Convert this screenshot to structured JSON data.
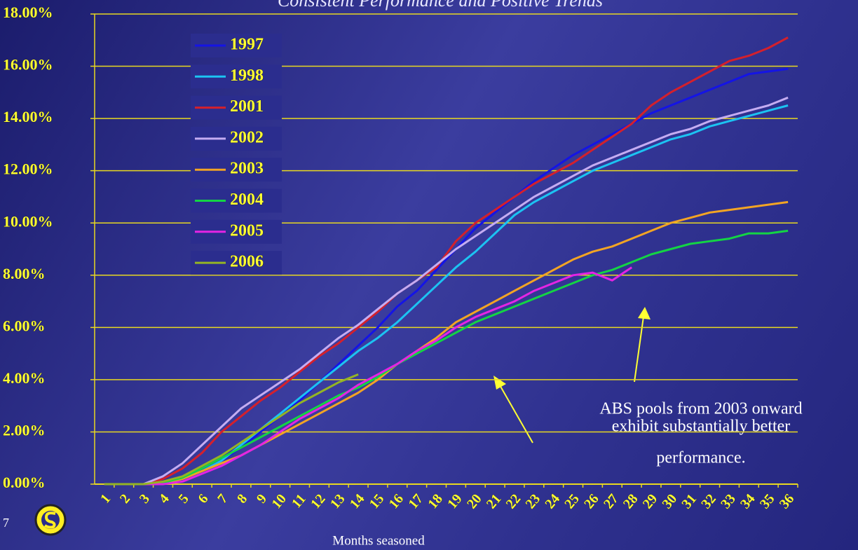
{
  "chart_data": {
    "type": "line",
    "title": "Consistent Performance and Positive Trends",
    "x_label": "Months seasoned",
    "page_number": "7",
    "annotation": [
      "ABS pools from 2003 onward",
      "exhibit substantially better",
      "performance."
    ],
    "categories": [
      "1",
      "2",
      "3",
      "4",
      "5",
      "6",
      "7",
      "8",
      "9",
      "10",
      "11",
      "12",
      "13",
      "14",
      "15",
      "16",
      "17",
      "18",
      "19",
      "20",
      "21",
      "22",
      "23",
      "24",
      "25",
      "26",
      "27",
      "28",
      "29",
      "30",
      "31",
      "32",
      "33",
      "34",
      "35",
      "36"
    ],
    "ylim": [
      0,
      18
    ],
    "yticks": [
      {
        "value": 0,
        "label": "0.00%"
      },
      {
        "value": 2,
        "label": "2.00%"
      },
      {
        "value": 4,
        "label": "4.00%"
      },
      {
        "value": 6,
        "label": "6.00%"
      },
      {
        "value": 8,
        "label": "8.00%"
      },
      {
        "value": 10,
        "label": "10.00%"
      },
      {
        "value": 12,
        "label": "12.00%"
      },
      {
        "value": 14,
        "label": "14.00%"
      },
      {
        "value": 16,
        "label": "16.00%"
      },
      {
        "value": 18,
        "label": "18.00%"
      }
    ],
    "grid": true,
    "series": [
      {
        "name": "1997",
        "color": "#1414e6",
        "values": [
          0,
          0,
          0,
          0.1,
          0.3,
          0.6,
          0.9,
          1.4,
          2.0,
          2.6,
          3.2,
          3.9,
          4.6,
          5.3,
          6.0,
          6.8,
          7.4,
          8.2,
          9.0,
          9.8,
          10.4,
          11.0,
          11.6,
          12.1,
          12.6,
          13.0,
          13.4,
          13.8,
          14.2,
          14.5,
          14.8,
          15.1,
          15.4,
          15.7,
          15.8,
          15.9
        ]
      },
      {
        "name": "1998",
        "color": "#1cc3f2",
        "values": [
          0,
          0,
          0,
          0.05,
          0.2,
          0.5,
          0.9,
          1.5,
          2.1,
          2.7,
          3.3,
          3.9,
          4.5,
          5.1,
          5.6,
          6.2,
          6.9,
          7.6,
          8.3,
          8.9,
          9.6,
          10.3,
          10.8,
          11.2,
          11.6,
          12.0,
          12.3,
          12.6,
          12.9,
          13.2,
          13.4,
          13.7,
          13.9,
          14.1,
          14.3,
          14.5
        ]
      },
      {
        "name": "2001",
        "color": "#d4202c",
        "values": [
          0,
          0,
          0,
          0.2,
          0.6,
          1.2,
          2.0,
          2.6,
          3.2,
          3.7,
          4.3,
          4.9,
          5.4,
          6.0,
          6.6,
          7.3,
          7.8,
          8.3,
          9.3,
          10.0,
          10.5,
          11.0,
          11.5,
          11.9,
          12.3,
          12.8,
          13.3,
          13.8,
          14.5,
          15.0,
          15.4,
          15.8,
          16.2,
          16.4,
          16.7,
          17.1
        ]
      },
      {
        "name": "2002",
        "color": "#c4acf2",
        "values": [
          0,
          0,
          0,
          0.3,
          0.8,
          1.5,
          2.2,
          2.9,
          3.4,
          3.9,
          4.4,
          5.0,
          5.6,
          6.1,
          6.7,
          7.3,
          7.8,
          8.4,
          9.0,
          9.5,
          10.0,
          10.5,
          11.0,
          11.4,
          11.8,
          12.2,
          12.5,
          12.8,
          13.1,
          13.4,
          13.6,
          13.9,
          14.1,
          14.3,
          14.5,
          14.8
        ]
      },
      {
        "name": "2003",
        "color": "#f2a424",
        "values": [
          0,
          0,
          0,
          0.05,
          0.2,
          0.5,
          0.8,
          1.1,
          1.5,
          1.9,
          2.3,
          2.7,
          3.1,
          3.5,
          4.0,
          4.6,
          5.1,
          5.6,
          6.2,
          6.6,
          7.0,
          7.4,
          7.8,
          8.2,
          8.6,
          8.9,
          9.1,
          9.4,
          9.7,
          10.0,
          10.2,
          10.4,
          10.5,
          10.6,
          10.7,
          10.8
        ]
      },
      {
        "name": "2004",
        "color": "#14d444",
        "values": [
          0,
          0,
          0,
          0.05,
          0.25,
          0.6,
          1.0,
          1.4,
          1.8,
          2.2,
          2.6,
          3.0,
          3.4,
          3.7,
          4.1,
          4.6,
          5.0,
          5.4,
          5.8,
          6.2,
          6.5,
          6.8,
          7.1,
          7.4,
          7.7,
          8.0,
          8.2,
          8.5,
          8.8,
          9.0,
          9.2,
          9.3,
          9.4,
          9.6,
          9.6,
          9.7
        ]
      },
      {
        "name": "2005",
        "color": "#e424e4",
        "values": [
          0,
          0,
          0,
          0,
          0.1,
          0.4,
          0.7,
          1.1,
          1.5,
          2.0,
          2.5,
          2.9,
          3.3,
          3.8,
          4.2,
          4.6,
          5.1,
          5.5,
          6.0,
          6.4,
          6.7,
          7.0,
          7.4,
          7.7,
          8.0,
          8.1,
          7.8,
          8.3,
          null,
          null,
          null,
          null,
          null,
          null,
          null,
          null
        ]
      },
      {
        "name": "2006",
        "color": "#94b424",
        "values": [
          0,
          0,
          0,
          0.1,
          0.3,
          0.7,
          1.1,
          1.6,
          2.1,
          2.6,
          3.1,
          3.5,
          3.9,
          4.2,
          null,
          null,
          null,
          null,
          null,
          null,
          null,
          null,
          null,
          null,
          null,
          null,
          null,
          null,
          null,
          null,
          null,
          null,
          null,
          null,
          null,
          null
        ]
      }
    ]
  }
}
